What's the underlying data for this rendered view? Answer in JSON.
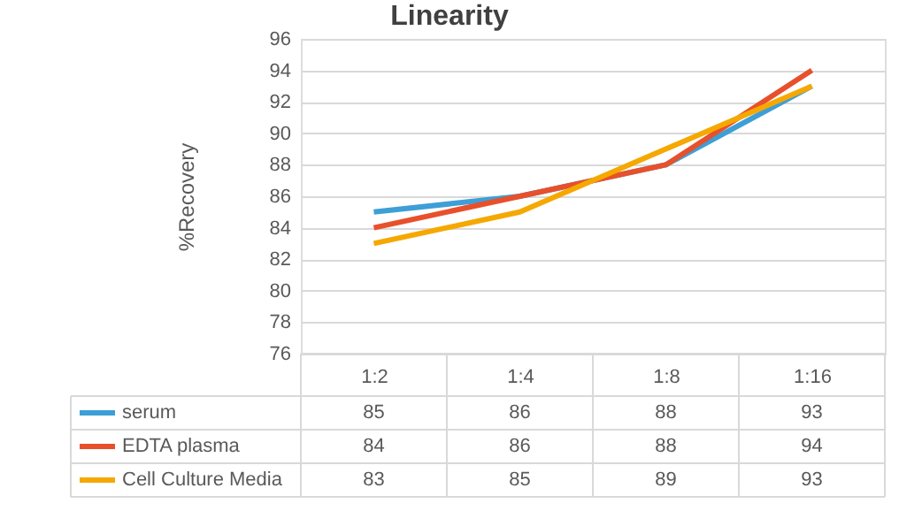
{
  "chart_data": {
    "type": "line",
    "title": "Linearity",
    "ylabel": "%Recovery",
    "categories": [
      "1:2",
      "1:4",
      "1:8",
      "1:16"
    ],
    "series": [
      {
        "name": "serum",
        "color": "#3d9fd6",
        "values": [
          85,
          86,
          88,
          93
        ]
      },
      {
        "name": "EDTA plasma",
        "color": "#e8502b",
        "values": [
          84,
          86,
          88,
          94
        ]
      },
      {
        "name": "Cell Culture Media",
        "color": "#f5a800",
        "values": [
          83,
          85,
          89,
          93
        ]
      }
    ],
    "ylim": [
      76,
      96
    ],
    "yticks": [
      76,
      78,
      80,
      82,
      84,
      86,
      88,
      90,
      92,
      94,
      96
    ],
    "grid": "y",
    "legend": "bottom",
    "data_labels": true,
    "marker": "none",
    "line_style": "solid"
  }
}
